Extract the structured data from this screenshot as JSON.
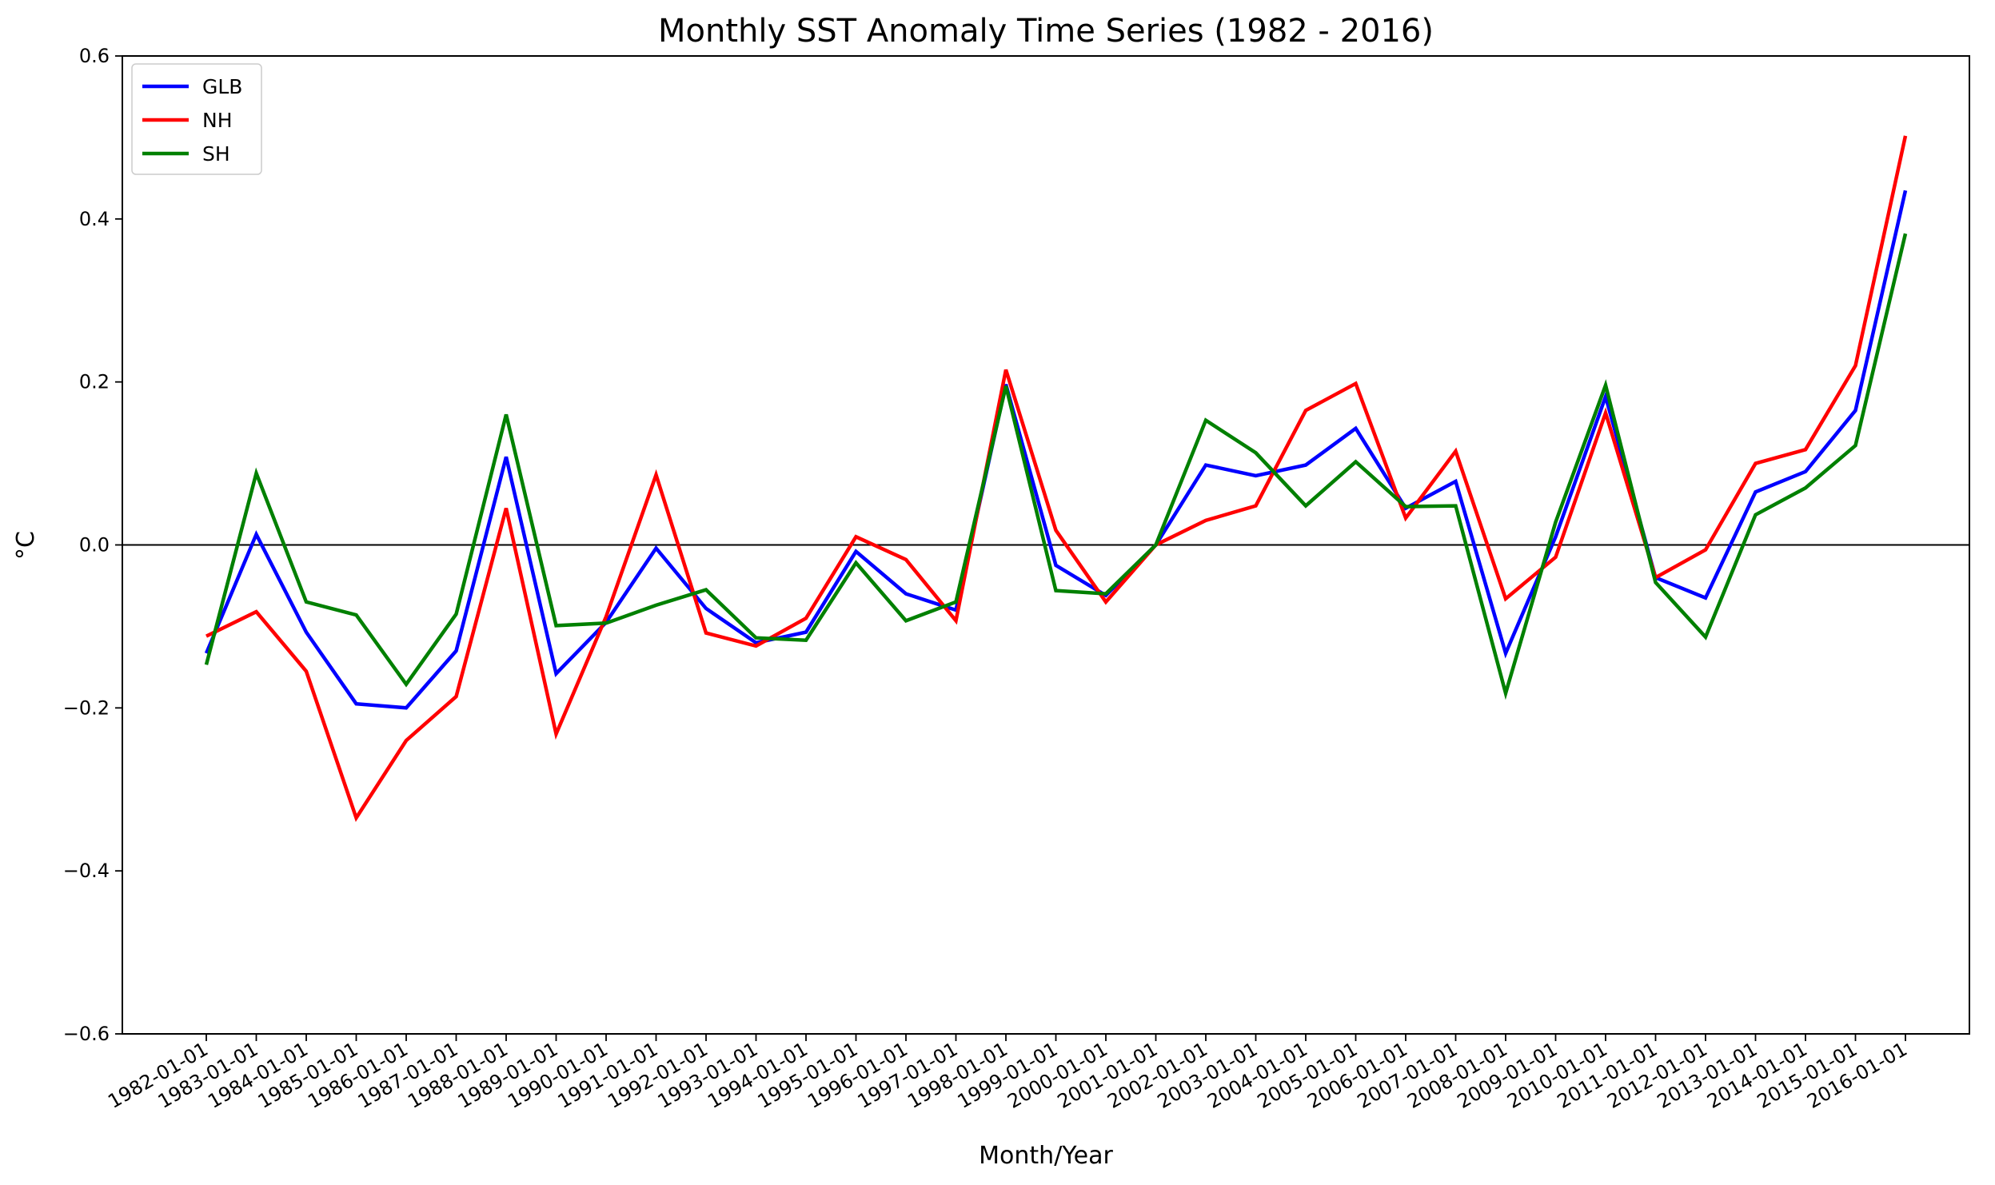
{
  "chart_data": {
    "type": "line",
    "title": "Monthly SST Anomaly Time Series (1982 - 2016)",
    "xlabel": "Month/Year",
    "ylabel": "°C",
    "ylim": [
      -0.6,
      0.6
    ],
    "yticks": [
      "0.6",
      "0.4",
      "0.2",
      "0.0",
      "−0.2",
      "−0.4",
      "−0.6"
    ],
    "ytick_values": [
      0.6,
      0.4,
      0.2,
      0.0,
      -0.2,
      -0.4,
      -0.6
    ],
    "reference_line": 0.0,
    "legend_position": "top-left",
    "grid": false,
    "categories": [
      "1982-01-01",
      "1983-01-01",
      "1984-01-01",
      "1985-01-01",
      "1986-01-01",
      "1987-01-01",
      "1988-01-01",
      "1989-01-01",
      "1990-01-01",
      "1991-01-01",
      "1992-01-01",
      "1993-01-01",
      "1994-01-01",
      "1995-01-01",
      "1996-01-01",
      "1997-01-01",
      "1998-01-01",
      "1999-01-01",
      "2000-01-01",
      "2001-01-01",
      "2002-01-01",
      "2003-01-01",
      "2004-01-01",
      "2005-01-01",
      "2006-01-01",
      "2007-01-01",
      "2008-01-01",
      "2009-01-01",
      "2010-01-01",
      "2011-01-01",
      "2012-01-01",
      "2013-01-01",
      "2014-01-01",
      "2015-01-01",
      "2016-01-01"
    ],
    "series": [
      {
        "name": "GLB",
        "color": "#0000ff",
        "values": [
          -0.133,
          0.013,
          -0.107,
          -0.195,
          -0.2,
          -0.13,
          0.108,
          -0.158,
          -0.095,
          -0.004,
          -0.078,
          -0.12,
          -0.107,
          -0.008,
          -0.06,
          -0.08,
          0.197,
          -0.025,
          -0.062,
          0.0,
          0.098,
          0.085,
          0.098,
          0.143,
          0.045,
          0.078,
          -0.133,
          0.01,
          0.182,
          -0.04,
          -0.065,
          0.065,
          0.09,
          0.165,
          0.435
        ]
      },
      {
        "name": "NH",
        "color": "#ff0000",
        "values": [
          -0.112,
          -0.082,
          -0.155,
          -0.335,
          -0.24,
          -0.186,
          0.045,
          -0.232,
          -0.088,
          0.086,
          -0.108,
          -0.124,
          -0.09,
          0.01,
          -0.018,
          -0.093,
          0.215,
          0.018,
          -0.07,
          0.0,
          0.03,
          0.048,
          0.165,
          0.198,
          0.033,
          0.115,
          -0.066,
          -0.015,
          0.162,
          -0.04,
          -0.006,
          0.1,
          0.117,
          0.22,
          0.502
        ]
      },
      {
        "name": "SH",
        "color": "#008000",
        "values": [
          -0.147,
          0.088,
          -0.07,
          -0.086,
          -0.171,
          -0.085,
          0.16,
          -0.099,
          -0.096,
          -0.074,
          -0.055,
          -0.114,
          -0.117,
          -0.022,
          -0.093,
          -0.07,
          0.195,
          -0.056,
          -0.06,
          0.0,
          0.153,
          0.113,
          0.048,
          0.102,
          0.047,
          0.048,
          -0.182,
          0.028,
          0.196,
          -0.046,
          -0.113,
          0.037,
          0.07,
          0.122,
          0.382
        ]
      }
    ]
  }
}
